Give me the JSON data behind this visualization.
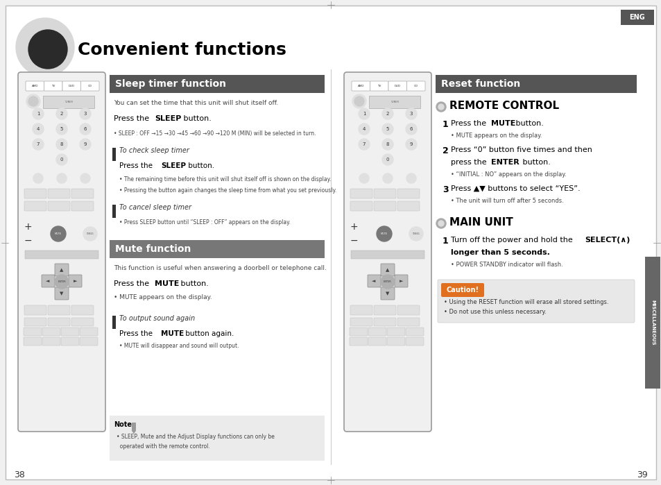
{
  "page_bg": "#f0f0f0",
  "white_bg": "#ffffff",
  "title": "Convenient functions",
  "title_fontsize": 18,
  "title_color": "#000000",
  "header_bg_dark": "#555555",
  "header_bg_medium": "#777777",
  "header_text_color": "#ffffff",
  "header_fontsize": 10,
  "sleep_header": "Sleep timer function",
  "mute_header": "Mute function",
  "reset_header": "Reset function",
  "eng_label": "ENG",
  "misc_label": "MISCELLANEOUS",
  "page_left": "38",
  "page_right": "39",
  "sleep_intro": "You can set the time that this unit will shut itself off.",
  "sleep_bullet1": "• SLEEP : OFF →15 →30 →45 →60 →90 →120 M (MIN) will be selected in turn.",
  "sleep_sub1_title": "To check sleep timer",
  "sleep_sub1_b1": "• The remaining time before this unit will shut itself off is shown on the display.",
  "sleep_sub1_b2": "• Pressing the button again changes the sleep time from what you set previously.",
  "sleep_sub2_title": "To cancel sleep timer",
  "sleep_sub2_b1": "• Press SLEEP button until “SLEEP : OFF” appears on the display.",
  "mute_intro": "This function is useful when answering a doorbell or telephone call.",
  "mute_bullet1": "• MUTE appears on the display.",
  "mute_sub1_title": "To output sound again",
  "mute_sub1_b1": "• MUTE will disappear and sound will output.",
  "note_text1": "• SLEEP, Mute and the Adjust Display functions can only be",
  "note_text2": "  operated with the remote control.",
  "remote_control_title": "REMOTE CONTROL",
  "remote_step1_sub": "• MUTE appears on the display.",
  "remote_step2_main1": "Press “0” button five times and then",
  "remote_step2_sub": "• “INITIAL : NO” appears on the display.",
  "remote_step3_sub": "• The unit will turn off after 5 seconds.",
  "main_unit_title": "MAIN UNIT",
  "main_step1_sub": "• POWER STANDBY indicator will flash.",
  "caution_title": "Caution!",
  "caution_b1": "• Using the RESET function will erase all stored settings.",
  "caution_b2": "• Do not use this unless necessary."
}
